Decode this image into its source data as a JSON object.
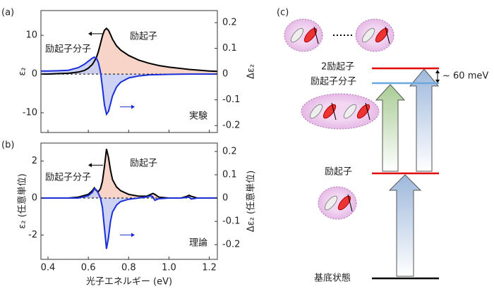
{
  "chart_data": [
    {
      "type": "line",
      "panel_label": "(a)",
      "ylabel": "ε₂",
      "y2label": "Δε₂",
      "xlim": [
        0.365,
        1.24
      ],
      "xticks": [
        0.4,
        0.6,
        0.8,
        1,
        1.2
      ],
      "ylim": [
        -15.1,
        16.4
      ],
      "yticks": [
        -10,
        0,
        10
      ],
      "y2lim": [
        -0.227,
        0.247
      ],
      "y2ticks": [
        -0.2,
        -0.1,
        0,
        0.1,
        0.2
      ],
      "x": [
        0.365,
        0.4,
        0.45,
        0.5,
        0.55,
        0.58,
        0.6,
        0.62,
        0.63,
        0.64,
        0.65,
        0.66,
        0.67,
        0.68,
        0.69,
        0.7,
        0.71,
        0.72,
        0.74,
        0.76,
        0.8,
        0.85,
        0.9,
        0.95,
        1.0,
        1.1,
        1.2,
        1.24
      ],
      "series": [
        {
          "color": "#000000",
          "fill": "#f6cdbd",
          "values": [
            0,
            0,
            0.1,
            0.2,
            0.5,
            0.9,
            1.5,
            2.5,
            3.3,
            4.3,
            5.8,
            7.8,
            9.8,
            11.3,
            11.8,
            11.3,
            10.2,
            9,
            7.3,
            6.2,
            4.8,
            3.6,
            2.8,
            2.2,
            1.8,
            1.2,
            0.8,
            0.7
          ]
        },
        {
          "color": "#1a2fd6",
          "fill": "#c6cbf2",
          "axis": "y2",
          "values": [
            0.012,
            0.012,
            0.013,
            0.015,
            0.025,
            0.038,
            0.05,
            0.062,
            0.066,
            0.062,
            0.045,
            0.01,
            -0.05,
            -0.12,
            -0.156,
            -0.145,
            -0.115,
            -0.085,
            -0.05,
            -0.032,
            -0.015,
            -0.007,
            -0.003,
            -0.002,
            -0.001,
            0,
            0,
            0
          ]
        }
      ],
      "annotations": [
        {
          "text": "励起子",
          "color": "#e00000"
        },
        {
          "text": "励起子分子",
          "color": "#1a2fd6"
        },
        {
          "text": "実験",
          "color": "#000000"
        }
      ]
    },
    {
      "type": "line",
      "panel_label": "(b)",
      "ylabel": "ε₂ (任意単位)",
      "y2label": "Δε₂ (任意単位)",
      "xlabel": "光子エネルギー (eV)",
      "xlim": [
        0.365,
        1.24
      ],
      "xticks": [
        0.4,
        0.6,
        0.8,
        {
          "value": 1,
          "label": "1.0"
        },
        1.2
      ],
      "ylim": [
        -3.31,
        2.97
      ],
      "yticks": [
        -2,
        0,
        2
      ],
      "y2lim": [
        -0.263,
        0.236
      ],
      "y2ticks": [
        -0.2,
        -0.1,
        0,
        0.1,
        0.2
      ],
      "x": [
        0.365,
        0.4,
        0.5,
        0.55,
        0.6,
        0.62,
        0.63,
        0.64,
        0.65,
        0.66,
        0.67,
        0.68,
        0.69,
        0.7,
        0.71,
        0.72,
        0.74,
        0.76,
        0.8,
        0.85,
        0.89,
        0.91,
        0.92,
        0.93,
        0.95,
        1.0,
        1.06,
        1.09,
        1.1,
        1.11,
        1.14,
        1.2,
        1.24
      ],
      "series": [
        {
          "color": "#000000",
          "fill": "#f6cdbd",
          "values": [
            0,
            0,
            0,
            0.05,
            0.2,
            0.4,
            0.55,
            0.4,
            0.35,
            0.5,
            0.9,
            1.7,
            2.65,
            2.2,
            1.5,
            1.0,
            0.6,
            0.4,
            0.2,
            0.1,
            0.1,
            0.2,
            0.25,
            0.2,
            0.05,
            0,
            0,
            0.1,
            0.15,
            0.1,
            0,
            0,
            0
          ]
        },
        {
          "color": "#1a2fd6",
          "fill": "#c6cbf2",
          "axis": "y2",
          "values": [
            0,
            0,
            0,
            0,
            0.01,
            0.025,
            0.04,
            0.035,
            0.02,
            0,
            -0.04,
            -0.13,
            -0.218,
            -0.17,
            -0.1,
            -0.06,
            -0.03,
            -0.015,
            -0.005,
            0,
            0.005,
            0.01,
            0.005,
            -0.01,
            -0.003,
            0,
            0,
            0.003,
            0.004,
            -0.004,
            0,
            0,
            0
          ]
        }
      ],
      "annotations": [
        {
          "text": "励起子",
          "color": "#e00000"
        },
        {
          "text": "励起子分子",
          "color": "#1a2fd6"
        },
        {
          "text": "理論",
          "color": "#000000"
        }
      ]
    }
  ],
  "diagram": {
    "panel_label": "(c)",
    "gap": "~ 60 meV",
    "levels": [
      {
        "label": "2励起子",
        "color": "#e00000"
      },
      {
        "label": "励起子分子",
        "color": "#1a2fd6"
      },
      {
        "label": "励起子",
        "color": "#e00000"
      },
      {
        "label": "基底状態",
        "color": "#000000"
      }
    ]
  }
}
